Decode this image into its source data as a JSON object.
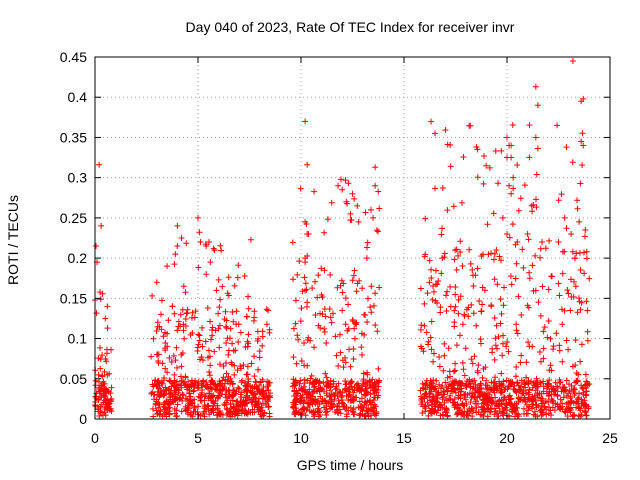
{
  "chart_data": {
    "type": "scatter",
    "title": "Day 040 of 2023, Rate Of TEC Index for receiver invr",
    "xlabel": "GPS time / hours",
    "ylabel": "ROTI / TECUs",
    "xlim": [
      0,
      25
    ],
    "ylim": [
      0,
      0.45
    ],
    "x_ticks": [
      0,
      5,
      10,
      15,
      20,
      25
    ],
    "x_tick_labels": [
      "0",
      "5",
      "10",
      "15",
      "20",
      "25"
    ],
    "y_ticks": [
      0,
      0.05,
      0.1,
      0.15,
      0.2,
      0.25,
      0.3,
      0.35,
      0.4,
      0.45
    ],
    "y_tick_labels": [
      "0",
      "0.05",
      "0.1",
      "0.15",
      "0.2",
      "0.25",
      "0.3",
      "0.35",
      "0.4",
      "0.45"
    ],
    "grid": true,
    "marker": "+",
    "series": [
      {
        "name": "ROTI",
        "color": "#ff0000",
        "segments": [
          {
            "x_range": [
              0.0,
              0.8
            ],
            "typical_max": 0.14,
            "peak": 0.31
          },
          {
            "x_range": [
              2.7,
              8.5
            ],
            "typical_max": 0.22,
            "peak": 0.25
          },
          {
            "x_range": [
              9.6,
              13.8
            ],
            "typical_max": 0.3,
            "peak": 0.37
          },
          {
            "x_range": [
              15.8,
              24.0
            ],
            "typical_max": 0.35,
            "peak": 0.445
          }
        ],
        "points": [
          [
            0.05,
            0.215
          ],
          [
            0.1,
            0.195
          ],
          [
            0.2,
            0.316
          ],
          [
            0.3,
            0.24
          ],
          [
            0.0,
            0.148
          ],
          [
            0.6,
            0.14
          ],
          [
            0.5,
            0.125
          ],
          [
            4.0,
            0.24
          ],
          [
            4.2,
            0.225
          ],
          [
            3.9,
            0.205
          ],
          [
            3.5,
            0.19
          ],
          [
            5.0,
            0.25
          ],
          [
            5.4,
            0.215
          ],
          [
            5.8,
            0.21
          ],
          [
            5.6,
            0.195
          ],
          [
            3.0,
            0.17
          ],
          [
            8.4,
            0.135
          ],
          [
            10.2,
            0.37
          ],
          [
            10.3,
            0.316
          ],
          [
            10.2,
            0.245
          ],
          [
            10.3,
            0.23
          ],
          [
            10.2,
            0.2
          ],
          [
            10.2,
            0.195
          ],
          [
            10.3,
            0.145
          ],
          [
            11.8,
            0.29
          ],
          [
            12.0,
            0.285
          ],
          [
            12.3,
            0.293
          ],
          [
            12.5,
            0.28
          ],
          [
            12.8,
            0.245
          ],
          [
            13.4,
            0.26
          ],
          [
            13.6,
            0.313
          ],
          [
            13.6,
            0.29
          ],
          [
            13.5,
            0.25
          ],
          [
            13.2,
            0.2
          ],
          [
            12.2,
            0.27
          ],
          [
            12.4,
            0.255
          ],
          [
            20.0,
            0.35
          ],
          [
            20.1,
            0.34
          ],
          [
            20.2,
            0.34
          ],
          [
            20.0,
            0.325
          ],
          [
            20.2,
            0.325
          ],
          [
            20.3,
            0.3
          ],
          [
            20.1,
            0.29
          ],
          [
            20.2,
            0.28
          ],
          [
            19.8,
            0.25
          ],
          [
            20.0,
            0.23
          ],
          [
            20.5,
            0.22
          ],
          [
            21.4,
            0.413
          ],
          [
            21.5,
            0.39
          ],
          [
            21.4,
            0.35
          ],
          [
            21.2,
            0.265
          ],
          [
            21.0,
            0.23
          ],
          [
            21.7,
            0.22
          ],
          [
            23.2,
            0.445
          ],
          [
            23.7,
            0.398
          ],
          [
            23.6,
            0.395
          ],
          [
            23.6,
            0.345
          ],
          [
            23.7,
            0.34
          ],
          [
            23.4,
            0.272
          ],
          [
            23.5,
            0.245
          ],
          [
            23.8,
            0.235
          ],
          [
            23.3,
            0.2
          ],
          [
            22.8,
            0.25
          ],
          [
            22.5,
            0.22
          ]
        ]
      }
    ]
  }
}
